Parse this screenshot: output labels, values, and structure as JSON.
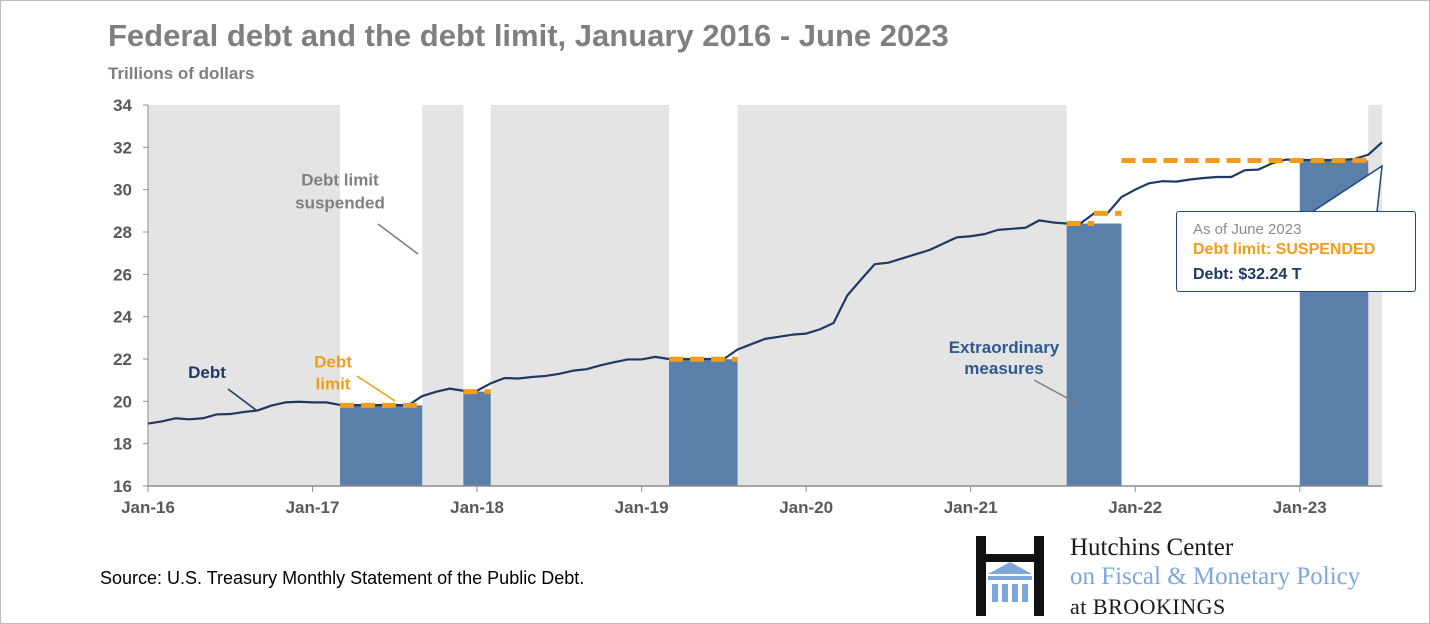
{
  "header": {
    "title": "Federal debt and the debt limit, January 2016 - June 2023",
    "subtitle": "Trillions of dollars"
  },
  "source": "Source: U.S. Treasury Monthly Statement of the Public Debt.",
  "logo": {
    "line1": "Hutchins Center",
    "line2": "on Fiscal & Monetary Policy",
    "line3_prefix": "at ",
    "line3_brand": "BROOKINGS"
  },
  "callout": {
    "line1": "As of June 2023",
    "line2": "Debt limit: SUSPENDED",
    "line3": "Debt: $32.24 T"
  },
  "colors": {
    "debt_line": "#1f3864",
    "debt_limit": "#f59b1a",
    "extraordinary": "#5a7fab",
    "suspended_shade": "#e4e4e4",
    "axis_text": "#595959",
    "title": "#7f7f7f"
  },
  "chart_data": {
    "type": "line",
    "title": "Federal debt and the debt limit, January 2016 - June 2023",
    "ylabel": "Trillions of dollars",
    "ylim": [
      16,
      34
    ],
    "yticks": [
      16,
      18,
      20,
      22,
      24,
      26,
      28,
      30,
      32,
      34
    ],
    "xlim": [
      "2016-01",
      "2023-07"
    ],
    "xticks": [
      "Jan-16",
      "Jan-17",
      "Jan-18",
      "Jan-19",
      "Jan-20",
      "Jan-21",
      "Jan-22",
      "Jan-23"
    ],
    "grid": false,
    "debt_limit_suspended_periods": [
      {
        "start": "2016-01",
        "end": "2017-03"
      },
      {
        "start": "2017-09",
        "end": "2017-12"
      },
      {
        "start": "2018-02",
        "end": "2019-03"
      },
      {
        "start": "2019-08",
        "end": "2021-08"
      },
      {
        "start": "2023-06",
        "end": "2023-07"
      }
    ],
    "extraordinary_measures_periods": [
      {
        "start": "2017-03",
        "end": "2017-09",
        "debt_limit": 19.81
      },
      {
        "start": "2017-12",
        "end": "2018-02",
        "debt_limit": 20.46
      },
      {
        "start": "2019-03",
        "end": "2019-08",
        "debt_limit": 21.99
      },
      {
        "start": "2021-08",
        "end": "2021-12",
        "debt_limit": 28.4
      },
      {
        "start": "2023-01",
        "end": "2023-06",
        "debt_limit": 31.38
      }
    ],
    "debt_limit_levels": [
      {
        "start": "2017-03",
        "end": "2017-09",
        "value": 19.81
      },
      {
        "start": "2017-12",
        "end": "2018-02",
        "value": 20.46
      },
      {
        "start": "2019-03",
        "end": "2019-08",
        "value": 21.99
      },
      {
        "start": "2021-08",
        "end": "2021-10",
        "value": 28.4
      },
      {
        "start": "2021-10",
        "end": "2021-12",
        "value": 28.88
      },
      {
        "start": "2021-12",
        "end": "2023-06",
        "value": 31.38
      }
    ],
    "series": [
      {
        "name": "Debt",
        "points": [
          [
            "2016-01",
            18.95
          ],
          [
            "2016-02",
            19.05
          ],
          [
            "2016-03",
            19.2
          ],
          [
            "2016-04",
            19.15
          ],
          [
            "2016-05",
            19.2
          ],
          [
            "2016-06",
            19.38
          ],
          [
            "2016-07",
            19.4
          ],
          [
            "2016-08",
            19.5
          ],
          [
            "2016-09",
            19.57
          ],
          [
            "2016-10",
            19.8
          ],
          [
            "2016-11",
            19.95
          ],
          [
            "2016-12",
            19.98
          ],
          [
            "2017-01",
            19.95
          ],
          [
            "2017-02",
            19.95
          ],
          [
            "2017-03",
            19.83
          ],
          [
            "2017-04",
            19.82
          ],
          [
            "2017-05",
            19.82
          ],
          [
            "2017-06",
            19.82
          ],
          [
            "2017-07",
            19.82
          ],
          [
            "2017-08",
            19.82
          ],
          [
            "2017-09",
            20.25
          ],
          [
            "2017-10",
            20.45
          ],
          [
            "2017-11",
            20.6
          ],
          [
            "2017-12",
            20.5
          ],
          [
            "2018-01",
            20.5
          ],
          [
            "2018-02",
            20.85
          ],
          [
            "2018-03",
            21.1
          ],
          [
            "2018-04",
            21.08
          ],
          [
            "2018-05",
            21.15
          ],
          [
            "2018-06",
            21.2
          ],
          [
            "2018-07",
            21.3
          ],
          [
            "2018-08",
            21.45
          ],
          [
            "2018-09",
            21.52
          ],
          [
            "2018-10",
            21.7
          ],
          [
            "2018-11",
            21.85
          ],
          [
            "2018-12",
            21.98
          ],
          [
            "2019-01",
            21.98
          ],
          [
            "2019-02",
            22.1
          ],
          [
            "2019-03",
            22.0
          ],
          [
            "2019-04",
            22.0
          ],
          [
            "2019-05",
            22.0
          ],
          [
            "2019-06",
            22.0
          ],
          [
            "2019-07",
            22.0
          ],
          [
            "2019-08",
            22.45
          ],
          [
            "2019-09",
            22.7
          ],
          [
            "2019-10",
            22.95
          ],
          [
            "2019-11",
            23.05
          ],
          [
            "2019-12",
            23.15
          ],
          [
            "2020-01",
            23.2
          ],
          [
            "2020-02",
            23.4
          ],
          [
            "2020-03",
            23.7
          ],
          [
            "2020-04",
            25.0
          ],
          [
            "2020-05",
            25.75
          ],
          [
            "2020-06",
            26.48
          ],
          [
            "2020-07",
            26.55
          ],
          [
            "2020-08",
            26.75
          ],
          [
            "2020-09",
            26.95
          ],
          [
            "2020-10",
            27.15
          ],
          [
            "2020-11",
            27.45
          ],
          [
            "2020-12",
            27.75
          ],
          [
            "2021-01",
            27.8
          ],
          [
            "2021-02",
            27.9
          ],
          [
            "2021-03",
            28.1
          ],
          [
            "2021-04",
            28.15
          ],
          [
            "2021-05",
            28.2
          ],
          [
            "2021-06",
            28.55
          ],
          [
            "2021-07",
            28.45
          ],
          [
            "2021-08",
            28.4
          ],
          [
            "2021-09",
            28.4
          ],
          [
            "2021-10",
            28.88
          ],
          [
            "2021-11",
            28.9
          ],
          [
            "2021-12",
            29.65
          ],
          [
            "2022-01",
            30.0
          ],
          [
            "2022-02",
            30.3
          ],
          [
            "2022-03",
            30.4
          ],
          [
            "2022-04",
            30.38
          ],
          [
            "2022-05",
            30.48
          ],
          [
            "2022-06",
            30.55
          ],
          [
            "2022-07",
            30.6
          ],
          [
            "2022-08",
            30.6
          ],
          [
            "2022-09",
            30.92
          ],
          [
            "2022-10",
            30.95
          ],
          [
            "2022-11",
            31.25
          ],
          [
            "2022-12",
            31.42
          ],
          [
            "2023-01",
            31.4
          ],
          [
            "2023-02",
            31.4
          ],
          [
            "2023-03",
            31.4
          ],
          [
            "2023-04",
            31.4
          ],
          [
            "2023-05",
            31.45
          ],
          [
            "2023-06",
            31.65
          ],
          [
            "2023-07",
            32.24
          ]
        ]
      }
    ],
    "annotations": [
      {
        "text": [
          "Debt limit",
          "suspended"
        ],
        "color": "#808080",
        "anchor": "2017-07",
        "y": 30.2
      },
      {
        "text": [
          "Debt",
          "limit"
        ],
        "color": "#f59b1a",
        "anchor": "2017-04",
        "y": 21.6
      },
      {
        "text": [
          "Debt"
        ],
        "color": "#1f3864",
        "anchor": "2016-03",
        "y": 21.5
      },
      {
        "text": [
          "Extraordinary",
          "measures"
        ],
        "color": "#2f5a8f",
        "anchor": "2021-03",
        "y": 21.8
      }
    ]
  }
}
